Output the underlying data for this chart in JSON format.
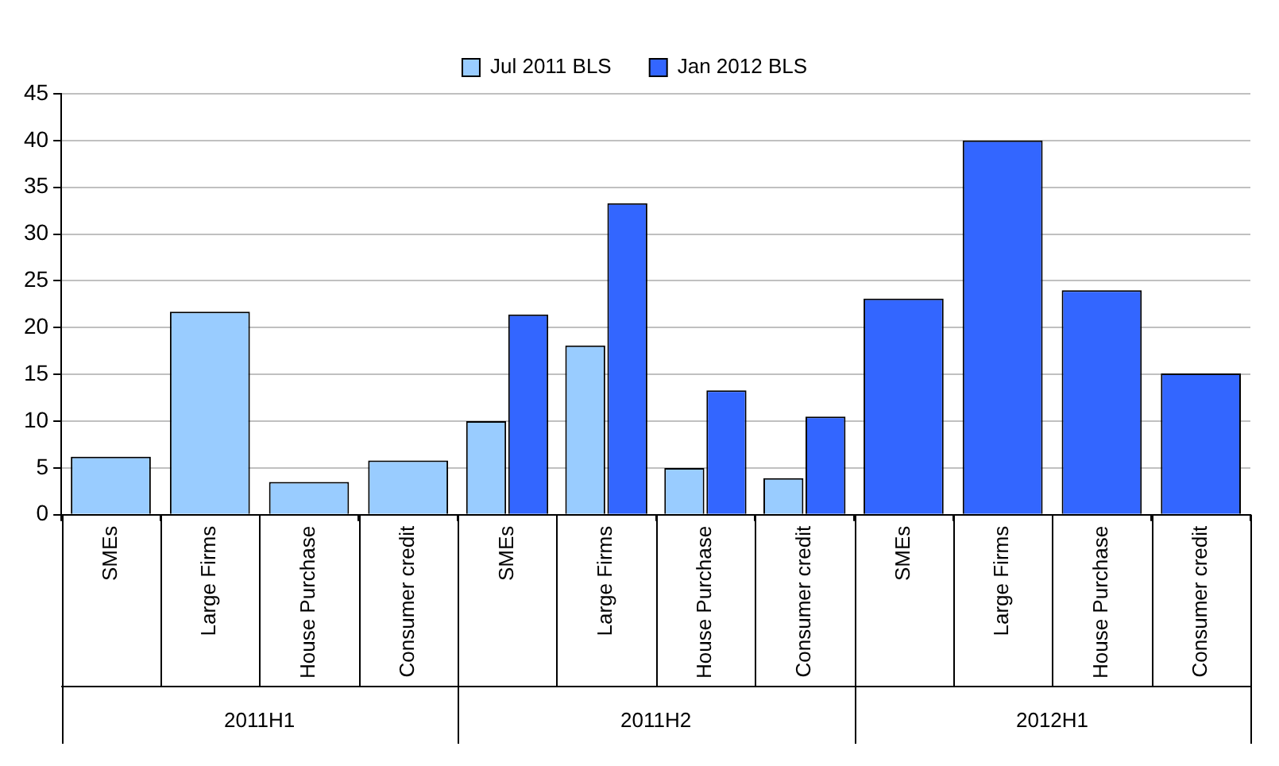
{
  "chart_data": {
    "type": "bar",
    "categories": [
      "SMEs",
      "Large Firms",
      "House Purchase",
      "Consumer credit",
      "SMEs",
      "Large Firms",
      "House Purchase",
      "Consumer credit",
      "SMEs",
      "Large Firms",
      "House Purchase",
      "Consumer credit"
    ],
    "series": [
      {
        "name": "Jul 2011 BLS",
        "color": "#99ccff",
        "values": [
          6.2,
          21.7,
          3.5,
          5.8,
          10.0,
          18.1,
          5.0,
          3.9,
          null,
          null,
          null,
          null
        ]
      },
      {
        "name": "Jan 2012 BLS",
        "color": "#3366ff",
        "values": [
          null,
          null,
          null,
          null,
          21.4,
          33.3,
          13.3,
          10.5,
          23.1,
          40.0,
          24.0,
          15.1
        ]
      }
    ],
    "annotations": [
      "2011H1",
      "2011H2",
      "2012H1"
    ],
    "ylim": [
      0,
      45
    ],
    "yticks": [
      0,
      5,
      10,
      15,
      20,
      25,
      30,
      35,
      40,
      45
    ],
    "grid": "y",
    "legend": "top"
  }
}
